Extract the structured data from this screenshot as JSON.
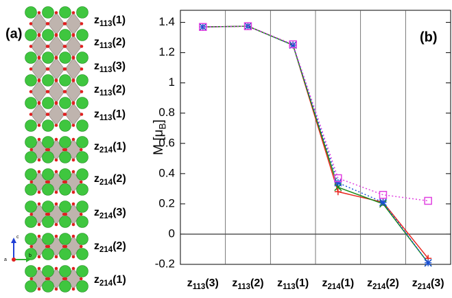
{
  "structure_panel": {
    "panel_label": "(a)",
    "layer_labels": [
      "z113(1)",
      "z113(2)",
      "z113(3)",
      "z113(2)",
      "z113(1)",
      "z214(1)",
      "z214(2)",
      "z214(3)",
      "z214(2)",
      "z214(1)"
    ],
    "axes_labels": [
      "c",
      "b",
      "a"
    ]
  },
  "chart_data": {
    "type": "line",
    "panel_label": "(b)",
    "y_label": "M [μB]",
    "categories": [
      "z113(3)",
      "z113(2)",
      "z113(1)",
      "z214(1)",
      "z214(2)",
      "z214(3)"
    ],
    "series": [
      {
        "color": "#e8261e",
        "marker": "plus",
        "dash": "solid",
        "values": [
          1.37,
          1.375,
          1.25,
          0.28,
          0.21,
          -0.16
        ]
      },
      {
        "color": "#1a8a1a",
        "marker": "cross",
        "dash": "solid",
        "values": [
          1.37,
          1.375,
          1.25,
          0.31,
          0.2,
          -0.19
        ]
      },
      {
        "color": "#1a4fd6",
        "marker": "star",
        "dash": "dotted",
        "values": [
          1.37,
          1.375,
          1.25,
          0.34,
          0.21,
          -0.19
        ]
      },
      {
        "color": "#e040e0",
        "marker": "square",
        "dash": "dotted",
        "values": [
          1.37,
          1.375,
          1.255,
          0.37,
          0.26,
          0.22
        ]
      }
    ],
    "ylim": [
      -0.2,
      1.48
    ],
    "yticks": [
      -0.2,
      0,
      0.2,
      0.4,
      0.6,
      0.8,
      1,
      1.2,
      1.4
    ],
    "zero_line": true,
    "category_separators": true
  }
}
